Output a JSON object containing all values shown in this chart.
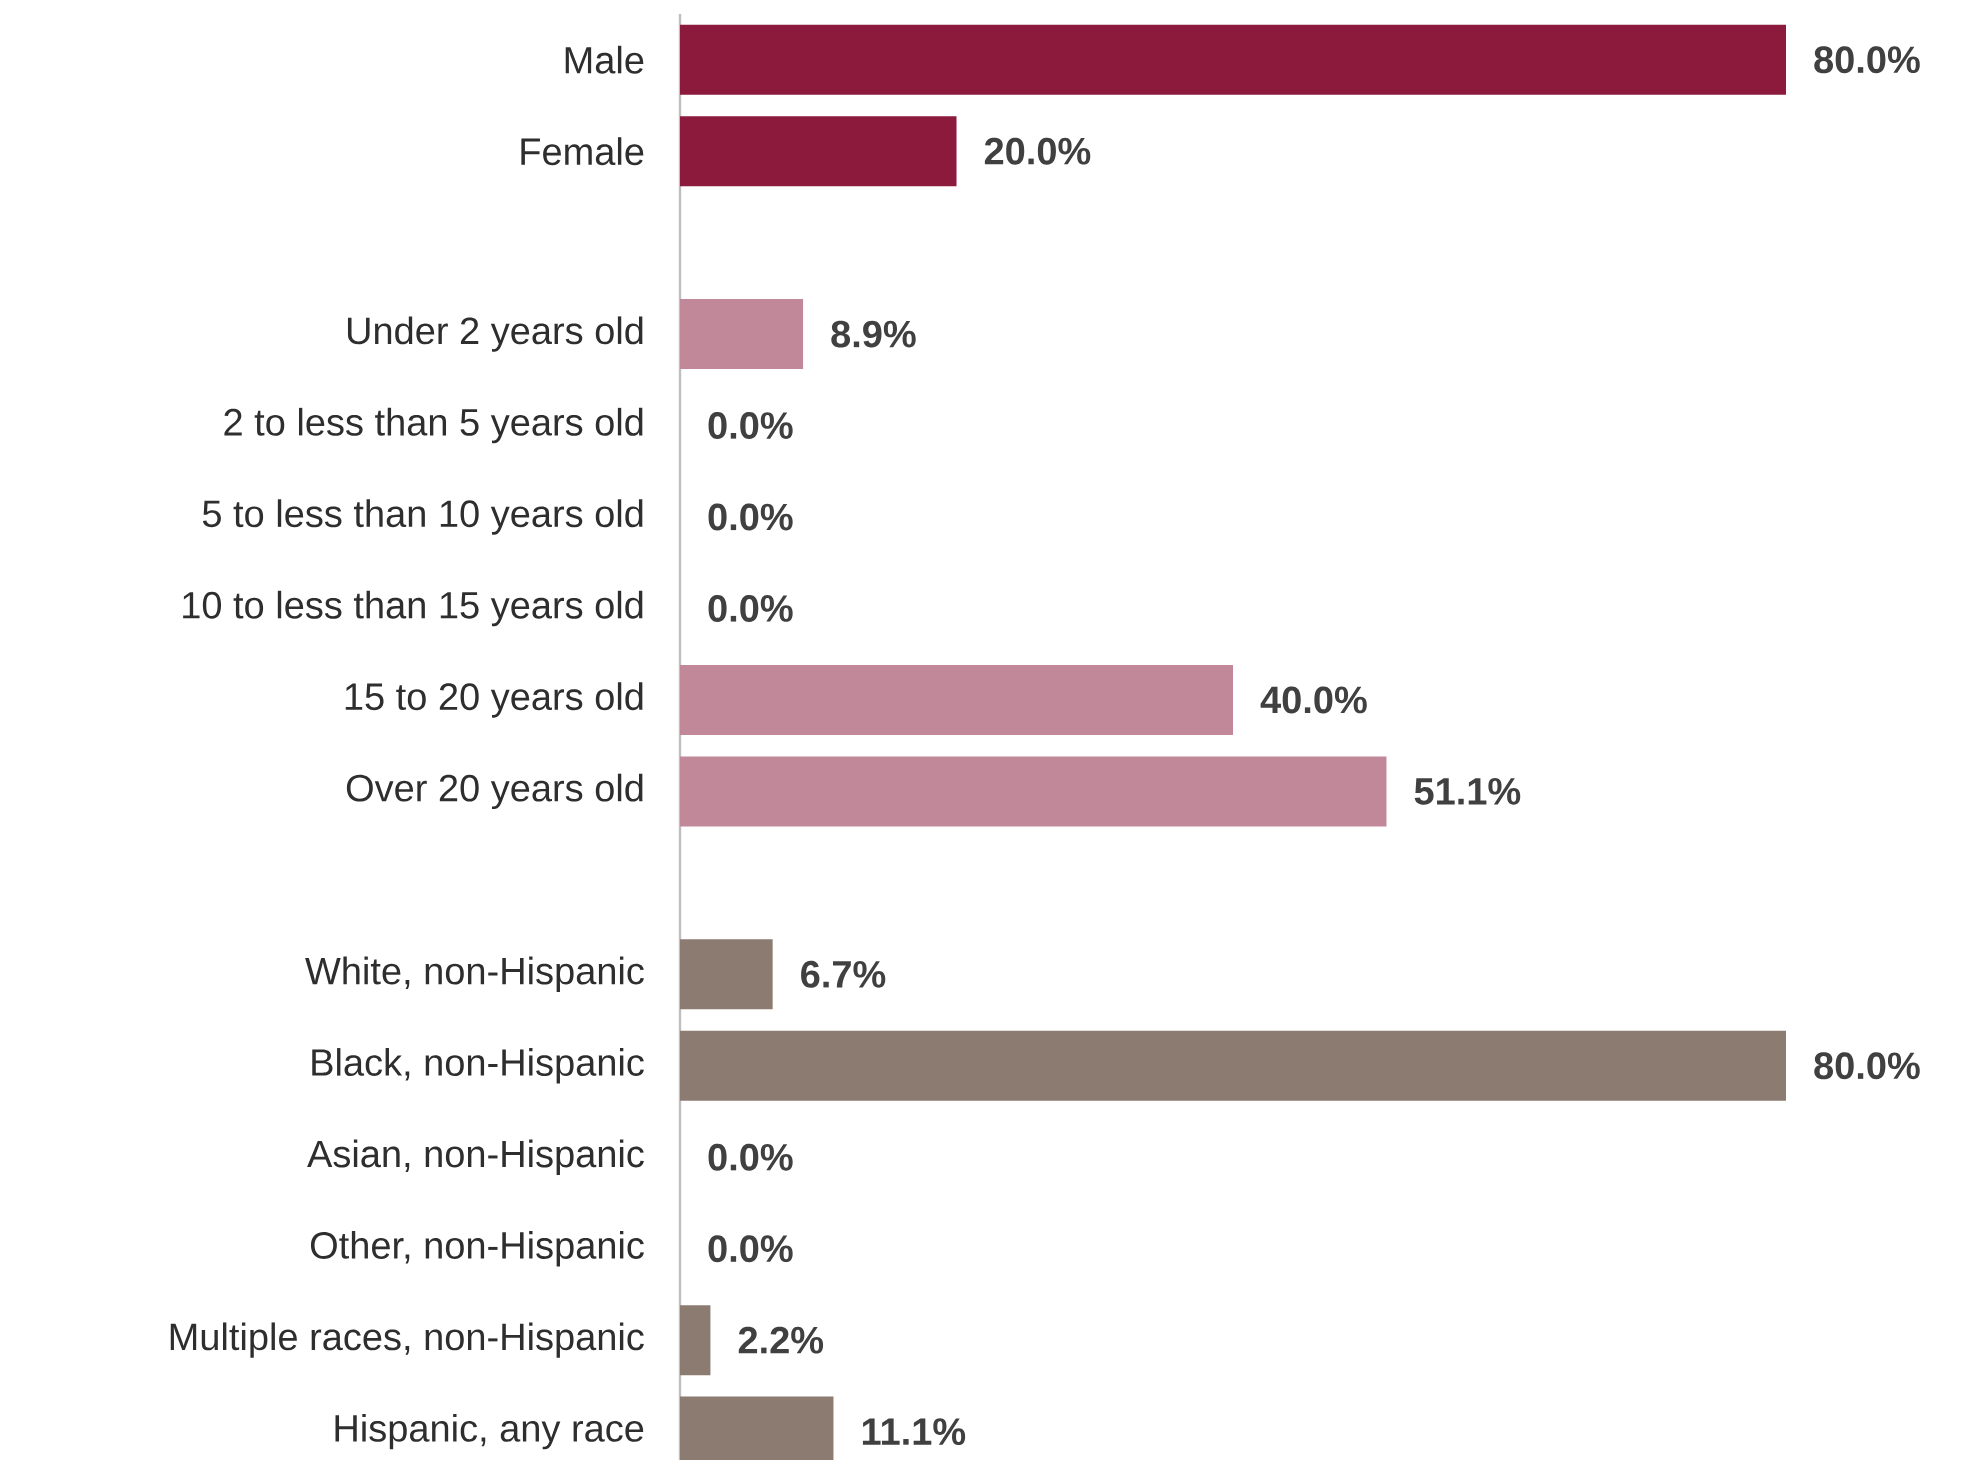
{
  "chart_data": {
    "type": "bar",
    "orientation": "horizontal",
    "categories": [
      "Male",
      "Female",
      null,
      "Under 2 years old",
      "2 to less than 5 years old",
      "5 to less than 10 years old",
      "10 to less than 15 years old",
      "15 to 20 years old",
      "Over 20 years old",
      null,
      "White, non-Hispanic",
      "Black, non-Hispanic",
      "Asian, non-Hispanic",
      "Other, non-Hispanic",
      "Multiple races, non-Hispanic",
      "Hispanic, any race"
    ],
    "values": [
      80.0,
      20.0,
      null,
      8.9,
      0.0,
      0.0,
      0.0,
      40.0,
      51.1,
      null,
      6.7,
      80.0,
      0.0,
      0.0,
      2.2,
      11.1
    ],
    "colors": [
      "#8b1a3d",
      "#8b1a3d",
      null,
      "#c08898",
      "#c08898",
      "#c08898",
      "#c08898",
      "#c08898",
      "#c08898",
      null,
      "#8c7b70",
      "#8c7b70",
      "#8c7b70",
      "#8c7b70",
      "#8c7b70",
      "#8c7b70"
    ],
    "value_labels": [
      "80.0%",
      "20.0%",
      null,
      "8.9%",
      "0.0%",
      "0.0%",
      "0.0%",
      "40.0%",
      "51.1%",
      null,
      "6.7%",
      "80.0%",
      "0.0%",
      "0.0%",
      "2.2%",
      "11.1%"
    ]
  }
}
